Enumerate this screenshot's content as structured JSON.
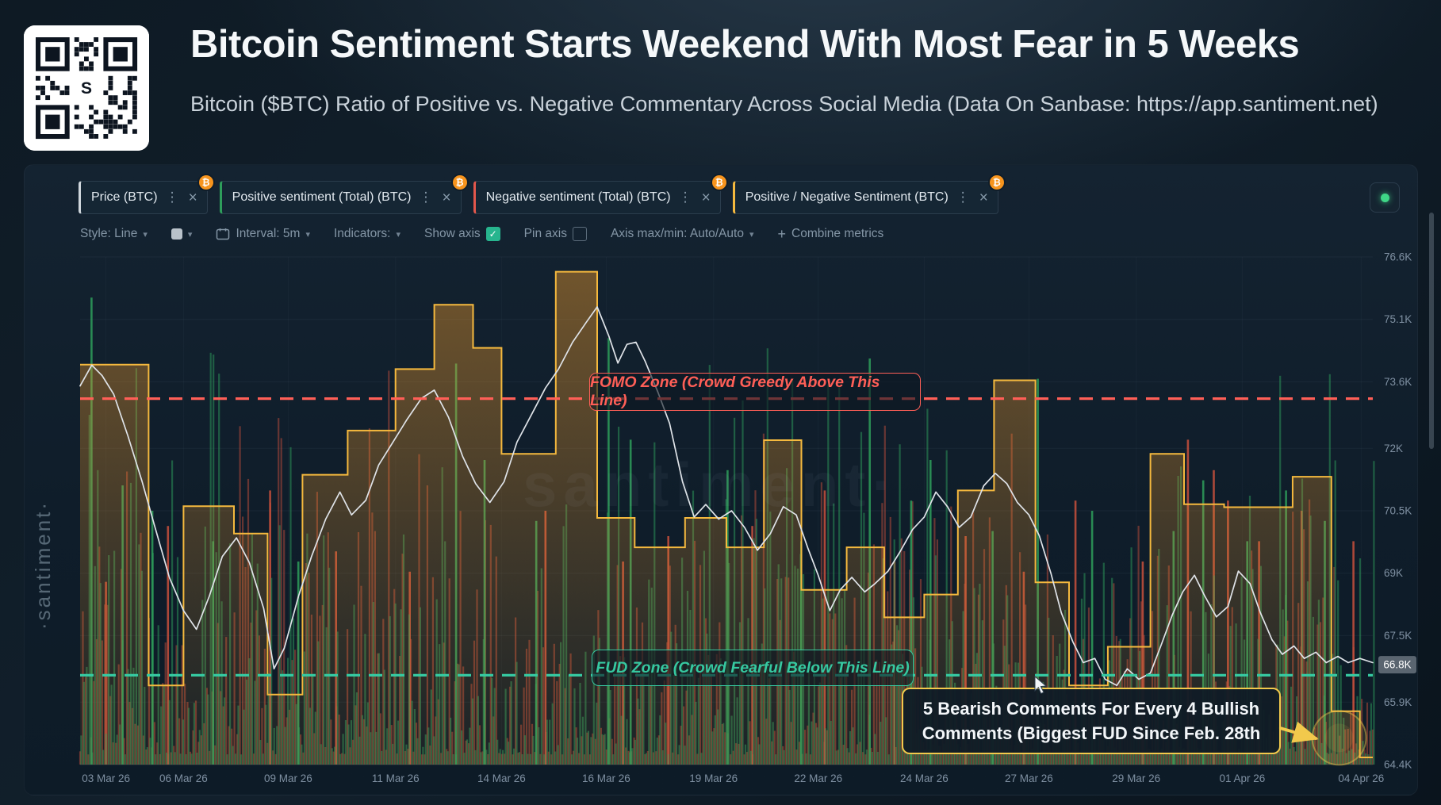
{
  "header": {
    "title": "Bitcoin Sentiment Starts Weekend With Most Fear in 5 Weeks",
    "subtitle": "Bitcoin ($BTC) Ratio of Positive vs. Negative Commentary Across Social Media (Data On Sanbase: https://app.santiment.net)"
  },
  "panel": {
    "badge_symbol": "₿",
    "metrics": [
      {
        "label": "Price (BTC)",
        "color": "#cfd6dc"
      },
      {
        "label": "Positive sentiment (Total) (BTC)",
        "color": "#2e9e5b"
      },
      {
        "label": "Negative sentiment (Total) (BTC)",
        "color": "#e2574c"
      },
      {
        "label": "Positive / Negative Sentiment (BTC)",
        "color": "#f5b93e"
      }
    ],
    "toolbar": {
      "style_label": "Style: Line",
      "interval_label": "Interval: 5m",
      "indicators_label": "Indicators:",
      "show_axis_label": "Show axis",
      "pin_axis_label": "Pin axis",
      "axis_maxmin_label": "Axis max/min: Auto/Auto",
      "combine_label": "Combine metrics"
    },
    "watermark_side": "·santiment·",
    "watermark_center": "santiment·"
  },
  "chart_data": {
    "type": "line",
    "title": "Bitcoin Sentiment Starts Weekend With Most Fear in 5 Weeks",
    "interval": "5m",
    "y_axis": {
      "min": 64.4,
      "max": 76.6,
      "unit": "K",
      "ticks": [
        "76.6K",
        "75.1K",
        "73.6K",
        "72K",
        "70.5K",
        "69K",
        "67.5K",
        "65.9K",
        "64.4K"
      ],
      "tick_values": [
        76.6,
        75.1,
        73.6,
        72.0,
        70.5,
        69.0,
        67.5,
        65.9,
        64.4
      ],
      "current_price_label": "66.8K",
      "current_price_value": 66.8
    },
    "x_ticks": [
      {
        "label": "03 Mar 26",
        "f": 0.02
      },
      {
        "label": "06 Mar 26",
        "f": 0.08
      },
      {
        "label": "09 Mar 26",
        "f": 0.161
      },
      {
        "label": "11 Mar 26",
        "f": 0.244
      },
      {
        "label": "14 Mar 26",
        "f": 0.326
      },
      {
        "label": "16 Mar 26",
        "f": 0.407
      },
      {
        "label": "19 Mar 26",
        "f": 0.49
      },
      {
        "label": "22 Mar 26",
        "f": 0.571
      },
      {
        "label": "24 Mar 26",
        "f": 0.653
      },
      {
        "label": "27 Mar 26",
        "f": 0.734
      },
      {
        "label": "29 Mar 26",
        "f": 0.817
      },
      {
        "label": "01 Apr 26",
        "f": 0.899
      },
      {
        "label": "04 Apr 26",
        "f": 0.991
      }
    ],
    "zones": {
      "fomo": {
        "label": "FOMO Zone (Crowd Greedy Above This Line)",
        "level_frac": 0.721,
        "color": "#ff5f57"
      },
      "fud": {
        "label": "FUD Zone (Crowd Fearful Below This Line)",
        "level_frac": 0.176,
        "color": "#36c9a1"
      }
    },
    "annotation": {
      "line1": "5 Bearish Comments For Every 4 Bullish",
      "line2": "Comments (Biggest FUD Since Feb. 28th",
      "target_f": 0.974,
      "target_frac": 0.04,
      "color": "#f2c94c"
    },
    "series": [
      {
        "name": "Price (BTC)",
        "type": "line",
        "color": "#dfe3e8",
        "points": [
          [
            0.0,
            73.5
          ],
          [
            0.009,
            74.0
          ],
          [
            0.017,
            73.75
          ],
          [
            0.026,
            73.3
          ],
          [
            0.037,
            72.3
          ],
          [
            0.048,
            71.2
          ],
          [
            0.058,
            70.1
          ],
          [
            0.069,
            68.9
          ],
          [
            0.08,
            68.1
          ],
          [
            0.09,
            67.65
          ],
          [
            0.1,
            68.45
          ],
          [
            0.11,
            69.4
          ],
          [
            0.121,
            69.85
          ],
          [
            0.131,
            69.25
          ],
          [
            0.142,
            68.15
          ],
          [
            0.15,
            66.7
          ],
          [
            0.158,
            67.2
          ],
          [
            0.169,
            68.45
          ],
          [
            0.179,
            69.4
          ],
          [
            0.19,
            70.3
          ],
          [
            0.201,
            70.95
          ],
          [
            0.21,
            70.4
          ],
          [
            0.221,
            70.75
          ],
          [
            0.231,
            71.6
          ],
          [
            0.242,
            72.15
          ],
          [
            0.253,
            72.7
          ],
          [
            0.264,
            73.2
          ],
          [
            0.274,
            73.4
          ],
          [
            0.285,
            72.75
          ],
          [
            0.296,
            71.8
          ],
          [
            0.306,
            71.15
          ],
          [
            0.317,
            70.7
          ],
          [
            0.328,
            71.2
          ],
          [
            0.338,
            72.15
          ],
          [
            0.349,
            72.8
          ],
          [
            0.36,
            73.45
          ],
          [
            0.37,
            73.9
          ],
          [
            0.381,
            74.55
          ],
          [
            0.392,
            75.05
          ],
          [
            0.4,
            75.4
          ],
          [
            0.409,
            74.7
          ],
          [
            0.416,
            74.05
          ],
          [
            0.423,
            74.5
          ],
          [
            0.43,
            74.55
          ],
          [
            0.437,
            74.1
          ],
          [
            0.447,
            73.35
          ],
          [
            0.456,
            72.6
          ],
          [
            0.466,
            71.2
          ],
          [
            0.475,
            70.35
          ],
          [
            0.484,
            70.65
          ],
          [
            0.494,
            70.3
          ],
          [
            0.504,
            70.5
          ],
          [
            0.514,
            70.1
          ],
          [
            0.524,
            69.55
          ],
          [
            0.534,
            69.95
          ],
          [
            0.544,
            70.6
          ],
          [
            0.554,
            70.4
          ],
          [
            0.563,
            69.6
          ],
          [
            0.571,
            68.95
          ],
          [
            0.58,
            68.1
          ],
          [
            0.588,
            68.6
          ],
          [
            0.597,
            68.9
          ],
          [
            0.607,
            68.55
          ],
          [
            0.615,
            68.75
          ],
          [
            0.625,
            69.05
          ],
          [
            0.634,
            69.5
          ],
          [
            0.644,
            70.05
          ],
          [
            0.653,
            70.35
          ],
          [
            0.662,
            70.95
          ],
          [
            0.671,
            70.6
          ],
          [
            0.68,
            70.1
          ],
          [
            0.689,
            70.35
          ],
          [
            0.699,
            71.1
          ],
          [
            0.708,
            71.4
          ],
          [
            0.717,
            71.15
          ],
          [
            0.725,
            70.7
          ],
          [
            0.734,
            70.4
          ],
          [
            0.742,
            69.9
          ],
          [
            0.751,
            69.0
          ],
          [
            0.759,
            68.05
          ],
          [
            0.768,
            67.35
          ],
          [
            0.776,
            66.85
          ],
          [
            0.785,
            66.95
          ],
          [
            0.793,
            66.45
          ],
          [
            0.802,
            66.3
          ],
          [
            0.81,
            66.7
          ],
          [
            0.819,
            66.45
          ],
          [
            0.828,
            66.6
          ],
          [
            0.836,
            67.25
          ],
          [
            0.845,
            68.0
          ],
          [
            0.853,
            68.55
          ],
          [
            0.862,
            68.95
          ],
          [
            0.87,
            68.45
          ],
          [
            0.879,
            67.95
          ],
          [
            0.888,
            68.2
          ],
          [
            0.896,
            69.05
          ],
          [
            0.905,
            68.75
          ],
          [
            0.913,
            68.05
          ],
          [
            0.922,
            67.4
          ],
          [
            0.93,
            67.05
          ],
          [
            0.939,
            67.25
          ],
          [
            0.947,
            66.95
          ],
          [
            0.956,
            67.1
          ],
          [
            0.964,
            66.85
          ],
          [
            0.973,
            67.0
          ],
          [
            0.981,
            66.85
          ],
          [
            0.99,
            66.95
          ],
          [
            1.0,
            66.85
          ]
        ]
      },
      {
        "name": "Positive / Negative Sentiment (BTC)",
        "type": "step-area",
        "color": "#f5b93e",
        "steps": [
          [
            0.0,
            0.788
          ],
          [
            0.053,
            0.156
          ],
          [
            0.08,
            0.509
          ],
          [
            0.119,
            0.455
          ],
          [
            0.145,
            0.138
          ],
          [
            0.172,
            0.571
          ],
          [
            0.207,
            0.658
          ],
          [
            0.244,
            0.779
          ],
          [
            0.274,
            0.906
          ],
          [
            0.304,
            0.821
          ],
          [
            0.326,
            0.612
          ],
          [
            0.368,
            0.971
          ],
          [
            0.4,
            0.486
          ],
          [
            0.429,
            0.428
          ],
          [
            0.468,
            0.486
          ],
          [
            0.5,
            0.428
          ],
          [
            0.529,
            0.639
          ],
          [
            0.558,
            0.344
          ],
          [
            0.593,
            0.428
          ],
          [
            0.622,
            0.29
          ],
          [
            0.653,
            0.335
          ],
          [
            0.679,
            0.54
          ],
          [
            0.707,
            0.757
          ],
          [
            0.739,
            0.359
          ],
          [
            0.765,
            0.156
          ],
          [
            0.795,
            0.232
          ],
          [
            0.828,
            0.612
          ],
          [
            0.854,
            0.513
          ],
          [
            0.885,
            0.507
          ],
          [
            0.938,
            0.567
          ],
          [
            0.968,
            0.105
          ],
          [
            0.99,
            0.014
          ]
        ]
      },
      {
        "name": "Positive sentiment (Total) (BTC)",
        "type": "bars",
        "color": "#2e9e5b",
        "procedural": {
          "seed": 20471,
          "count": 470,
          "base": 0.55,
          "opacity": 0.5,
          "phase": 0.9
        },
        "spikes": [
          [
            0.008,
            0.92
          ],
          [
            0.032,
            0.55
          ],
          [
            0.055,
            0.5
          ],
          [
            0.102,
            0.44
          ],
          [
            0.168,
            0.4
          ],
          [
            0.29,
            0.79
          ],
          [
            0.312,
            0.6
          ],
          [
            0.352,
            0.48
          ],
          [
            0.408,
            0.84
          ],
          [
            0.425,
            0.64
          ],
          [
            0.5,
            0.58
          ],
          [
            0.557,
            0.44
          ],
          [
            0.61,
            0.8
          ],
          [
            0.642,
            0.52
          ],
          [
            0.657,
            0.6
          ],
          [
            0.705,
            0.46
          ],
          [
            0.74,
            0.76
          ],
          [
            0.782,
            0.5
          ],
          [
            0.845,
            0.46
          ],
          [
            0.868,
            0.56
          ],
          [
            0.902,
            0.44
          ],
          [
            0.932,
            0.54
          ],
          [
            0.962,
            0.48
          ]
        ]
      },
      {
        "name": "Negative sentiment (Total) (BTC)",
        "type": "bars",
        "color": "#c8503c",
        "procedural": {
          "seed": 911,
          "count": 470,
          "base": 0.5,
          "opacity": 0.48,
          "phase": 0.3
        },
        "spikes": [
          [
            0.02,
            0.36
          ],
          [
            0.068,
            0.47
          ],
          [
            0.147,
            0.54
          ],
          [
            0.198,
            0.42
          ],
          [
            0.255,
            0.38
          ],
          [
            0.36,
            0.5
          ],
          [
            0.42,
            0.4
          ],
          [
            0.455,
            0.45
          ],
          [
            0.52,
            0.47
          ],
          [
            0.576,
            0.54
          ],
          [
            0.63,
            0.4
          ],
          [
            0.685,
            0.45
          ],
          [
            0.73,
            0.38
          ],
          [
            0.77,
            0.52
          ],
          [
            0.822,
            0.4
          ],
          [
            0.857,
            0.64
          ],
          [
            0.877,
            0.58
          ],
          [
            0.888,
            0.52
          ],
          [
            0.912,
            0.44
          ],
          [
            0.945,
            0.5
          ],
          [
            0.985,
            0.44
          ]
        ]
      }
    ]
  }
}
